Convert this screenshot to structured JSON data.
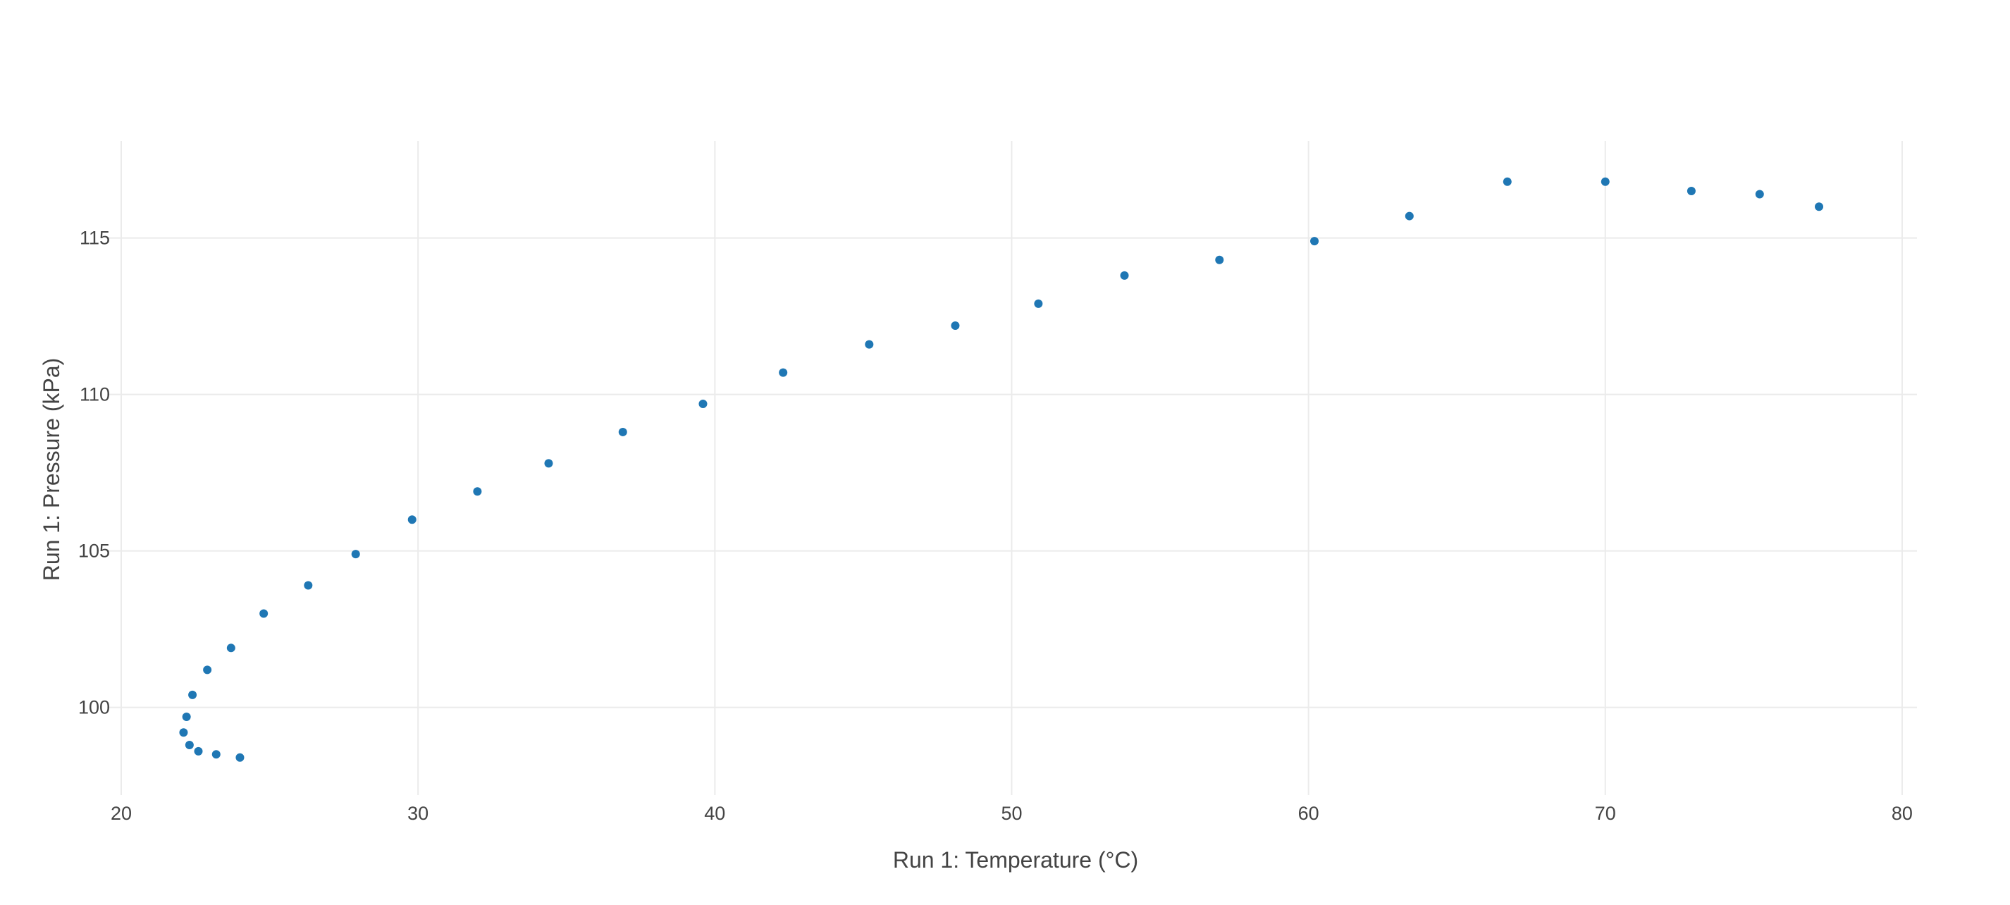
{
  "chart_data": {
    "type": "scatter",
    "title": "",
    "xlabel": "Run 1: Temperature (°C)",
    "ylabel": "Run 1: Pressure (kPa)",
    "xlim": [
      20,
      80.5
    ],
    "ylim": [
      97.2,
      118.1
    ],
    "x_ticks": [
      20,
      30,
      40,
      50,
      60,
      70,
      80
    ],
    "y_ticks": [
      100,
      105,
      110,
      115
    ],
    "grid": true,
    "legend": "none",
    "marker_color": "#1f77b4",
    "series": [
      {
        "x": [
          24.0,
          23.2,
          22.6,
          22.3,
          22.1,
          22.2,
          22.4,
          22.9,
          23.7,
          24.8,
          26.3,
          27.9,
          29.8,
          32.0,
          34.4,
          36.9,
          39.6,
          42.3,
          45.2,
          48.1,
          50.9,
          53.8,
          57.0,
          60.2,
          63.4,
          66.7,
          70.0,
          72.9,
          75.2,
          77.2
        ],
        "y": [
          98.4,
          98.5,
          98.6,
          98.8,
          99.2,
          99.7,
          100.4,
          101.2,
          101.9,
          103.0,
          103.9,
          104.9,
          106.0,
          106.9,
          107.8,
          108.8,
          109.7,
          110.7,
          111.6,
          112.2,
          112.9,
          113.8,
          114.3,
          114.9,
          115.7,
          116.8,
          116.8,
          116.5,
          116.4,
          116.0
        ]
      }
    ]
  }
}
